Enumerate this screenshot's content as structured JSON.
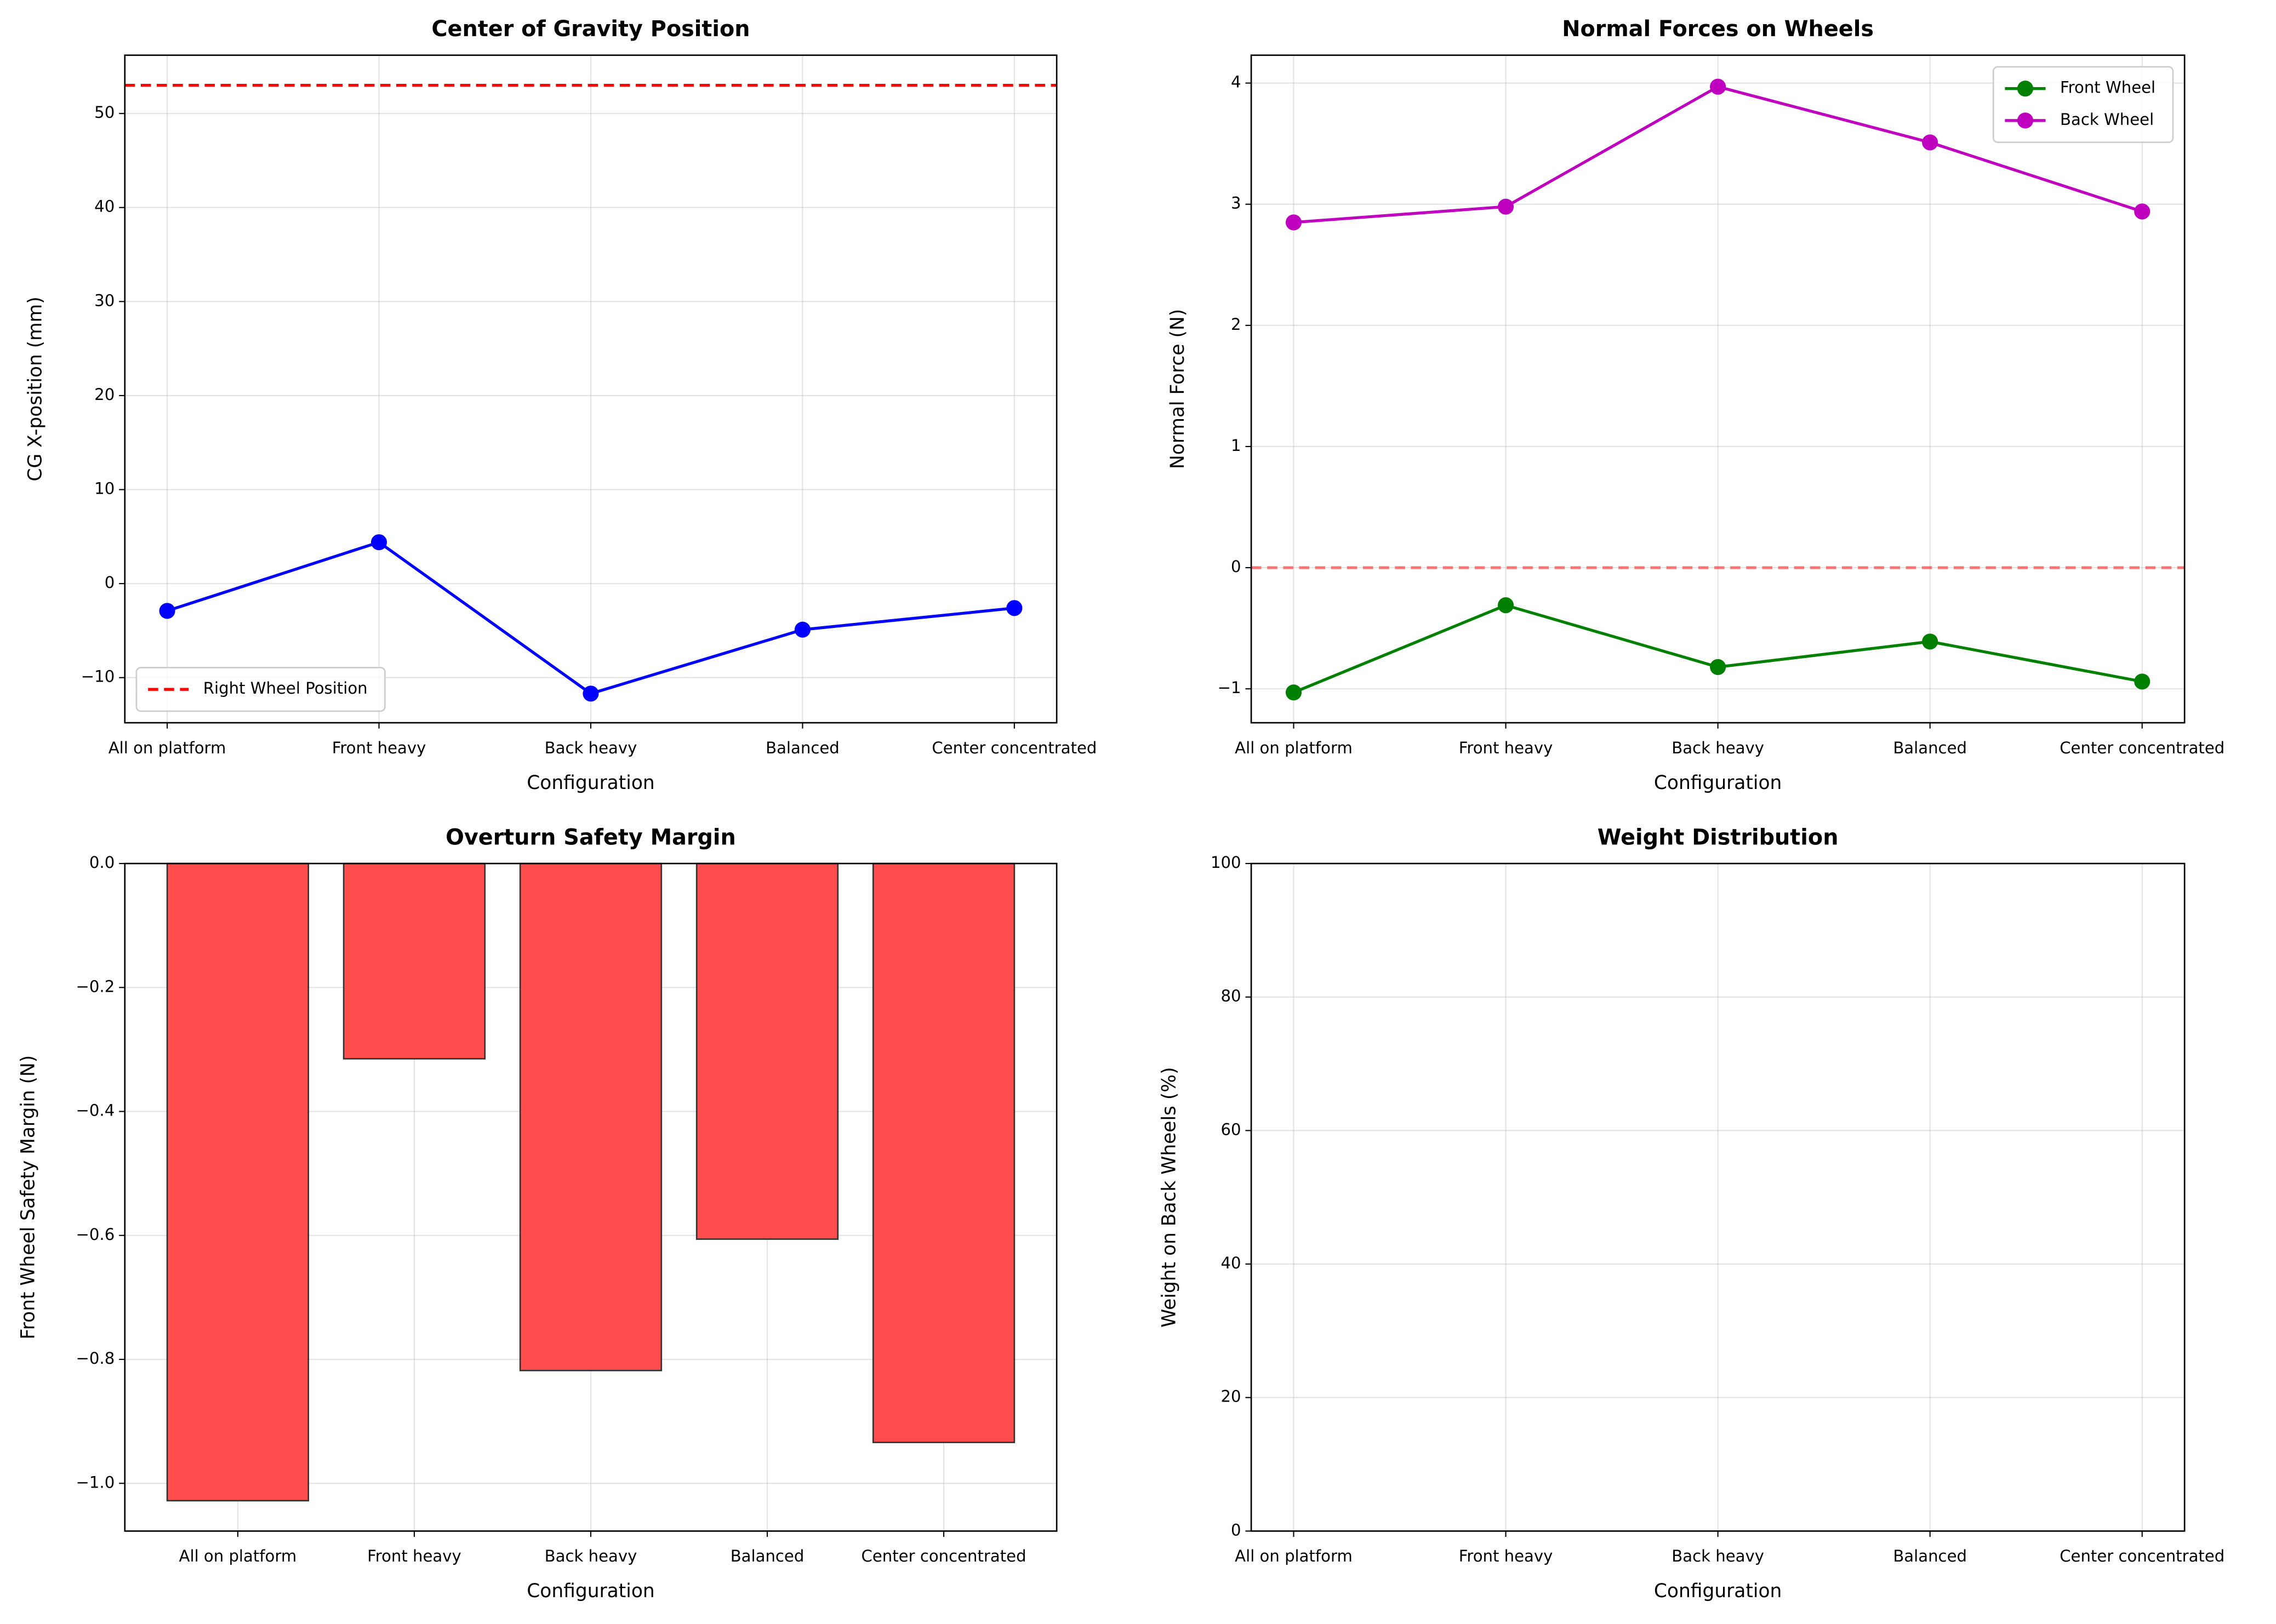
{
  "chart_data": [
    {
      "type": "line",
      "title": "Center of Gravity Position",
      "xlabel": "Configuration",
      "ylabel": "CG X-position (mm)",
      "categories": [
        "All on platform",
        "Front heavy",
        "Back heavy",
        "Balanced",
        "Center concentrated"
      ],
      "series": [
        {
          "color": "#0000ff",
          "values": [
            -2.9,
            4.4,
            -11.7,
            -4.9,
            -2.6
          ]
        }
      ],
      "hlines": [
        {
          "name": "Right Wheel Position",
          "value": 53,
          "color": "#ff0000",
          "style": "dashed"
        }
      ],
      "ylim": [
        -14.8,
        56.2
      ],
      "yticks": [
        {
          "value": -10,
          "label": "−10"
        },
        0,
        10,
        20,
        30,
        40,
        50
      ],
      "grid": true,
      "legend": "lower left"
    },
    {
      "type": "line",
      "title": "Normal Forces on Wheels",
      "xlabel": "Configuration",
      "ylabel": "Normal Force (N)",
      "categories": [
        "All on platform",
        "Front heavy",
        "Back heavy",
        "Balanced",
        "Center concentrated"
      ],
      "series": [
        {
          "name": "Front Wheel",
          "color": "#008000",
          "values": [
            -1.03,
            -0.31,
            -0.82,
            -0.61,
            -0.94
          ]
        },
        {
          "name": "Back Wheel",
          "color": "#bf00bf",
          "values": [
            2.85,
            2.98,
            3.97,
            3.51,
            2.94
          ]
        }
      ],
      "hlines": [
        {
          "value": 0,
          "color": "#ff0000",
          "style": "dashed",
          "alpha": 0.5
        }
      ],
      "ylim": [
        -1.28,
        4.23
      ],
      "yticks": [
        {
          "value": -1,
          "label": "−1"
        },
        0,
        1,
        2,
        3,
        4
      ],
      "grid": true,
      "legend": "upper right"
    },
    {
      "type": "bar",
      "title": "Overturn Safety Margin",
      "xlabel": "Configuration",
      "ylabel": "Front Wheel Safety Margin (N)",
      "categories": [
        "All on platform",
        "Front heavy",
        "Back heavy",
        "Balanced",
        "Center concentrated"
      ],
      "values": [
        -1.028,
        -0.315,
        -0.818,
        -0.606,
        -0.934
      ],
      "color": "#ff4d4d",
      "edgecolor": "#333333",
      "ylim": [
        -1.077,
        0
      ],
      "yticks": [
        {
          "value": -1.0,
          "label": "−1.0"
        },
        {
          "value": -0.8,
          "label": "−0.8"
        },
        {
          "value": -0.6,
          "label": "−0.6"
        },
        {
          "value": -0.4,
          "label": "−0.4"
        },
        {
          "value": -0.2,
          "label": "−0.2"
        },
        {
          "value": 0,
          "label": "0.0"
        }
      ],
      "grid": true
    },
    {
      "type": "line",
      "title": "Weight Distribution",
      "xlabel": "Configuration",
      "ylabel": "Weight on Back Wheels (%)",
      "categories": [
        "All on platform",
        "Front heavy",
        "Back heavy",
        "Balanced",
        "Center concentrated"
      ],
      "series": [],
      "ylim": [
        0,
        100
      ],
      "yticks": [
        0,
        20,
        40,
        60,
        80,
        100
      ],
      "grid": true
    }
  ]
}
